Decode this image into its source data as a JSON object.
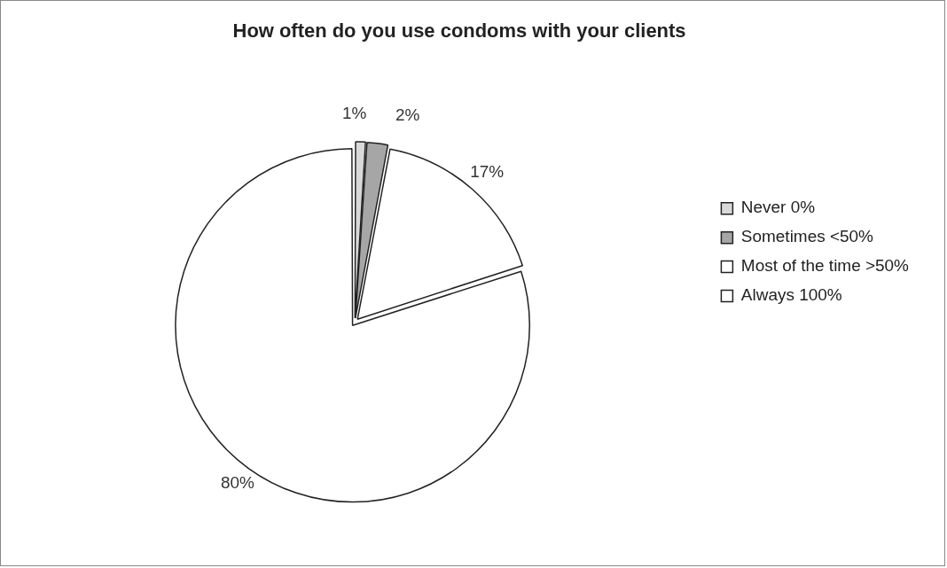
{
  "chart_data": {
    "type": "pie",
    "title": "How often do you use condoms with your clients",
    "categories": [
      "Never 0%",
      "Sometimes <50%",
      "Most of the time >50%",
      "Always 100%"
    ],
    "values": [
      1,
      2,
      17,
      80
    ],
    "value_labels": [
      "1%",
      "2%",
      "17%",
      "80%"
    ],
    "colors": [
      "#d9d9d9",
      "#a6a6a6",
      "#ffffff",
      "#ffffff"
    ],
    "legend": "right"
  }
}
